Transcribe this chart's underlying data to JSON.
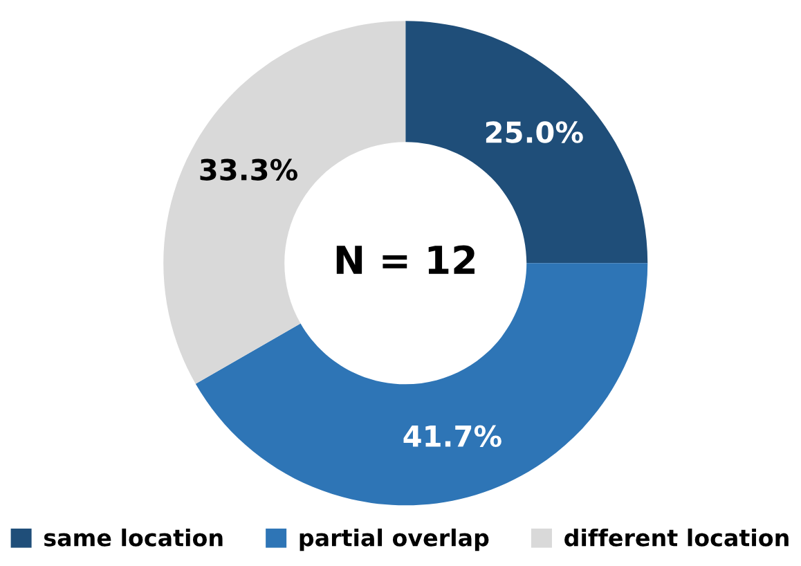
{
  "chart_data": {
    "type": "donut",
    "categories": [
      "same location",
      "partial overlap",
      "different location"
    ],
    "values": [
      25.0,
      41.7,
      33.3
    ],
    "colors": [
      "#1f4e79",
      "#2e75b6",
      "#d9d9d9"
    ],
    "value_labels": [
      "25.0%",
      "41.7%",
      "33.3%"
    ],
    "annotations": [
      "N = 12"
    ],
    "legend": "bottom"
  }
}
